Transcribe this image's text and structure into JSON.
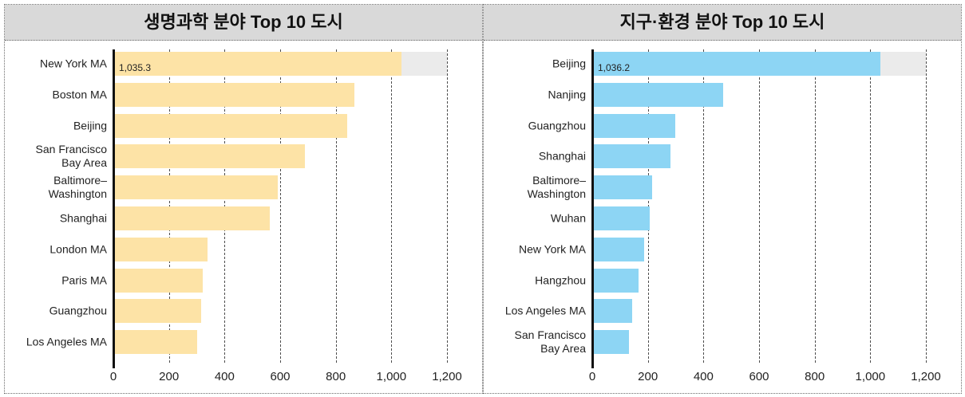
{
  "chart_data": [
    {
      "type": "bar",
      "orientation": "horizontal",
      "title": "생명과학 분야 Top 10 도시",
      "categories": [
        "New York MA",
        "Boston MA",
        "Beijing",
        "San Francisco\nBay Area",
        "Baltimore–\nWashington",
        "Shanghai",
        "London MA",
        "Paris MA",
        "Guangzhou",
        "Los Angeles MA"
      ],
      "values": [
        1035.3,
        867,
        841,
        689,
        591,
        563,
        339,
        322,
        316,
        301
      ],
      "data_labels": [
        {
          "index": 0,
          "text": "1,035.3"
        }
      ],
      "xlim": [
        0,
        1200
      ],
      "xticks": [
        0,
        200,
        400,
        600,
        800,
        1000,
        1200
      ],
      "xtick_labels": [
        "0",
        "200",
        "400",
        "600",
        "800",
        "1,000",
        "1,200"
      ],
      "track": {
        "index": 0,
        "max": 1200
      },
      "grid": true,
      "bar_color": "#fde3a6",
      "track_color": "#ebebeb"
    },
    {
      "type": "bar",
      "orientation": "horizontal",
      "title": "지구·환경 분야 Top 10 도시",
      "categories": [
        "Beijing",
        "Nanjing",
        "Guangzhou",
        "Shanghai",
        "Baltimore–\nWashington",
        "Wuhan",
        "New York MA",
        "Hangzhou",
        "Los Angeles MA",
        "San Francisco\nBay Area"
      ],
      "values": [
        1036.2,
        470,
        298,
        281,
        215,
        206,
        186,
        166,
        143,
        132
      ],
      "data_labels": [
        {
          "index": 0,
          "text": "1,036.2"
        }
      ],
      "xlim": [
        0,
        1200
      ],
      "xticks": [
        0,
        200,
        400,
        600,
        800,
        1000,
        1200
      ],
      "xtick_labels": [
        "0",
        "200",
        "400",
        "600",
        "800",
        "1,000",
        "1,200"
      ],
      "track": {
        "index": 0,
        "max": 1200
      },
      "grid": true,
      "bar_color": "#8dd5f4",
      "track_color": "#ebebeb"
    }
  ]
}
